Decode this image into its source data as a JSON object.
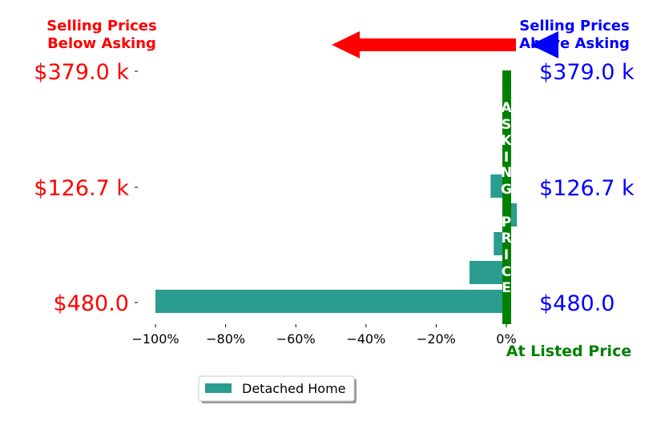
{
  "chart_data": {
    "type": "bar",
    "orientation": "horizontal",
    "headers": {
      "left": [
        "Selling Prices",
        "Below Asking"
      ],
      "right": [
        "Selling Prices",
        "Above Asking"
      ]
    },
    "ytick_labels": [
      "$480.0",
      "$126.7 k",
      "$379.0 k"
    ],
    "x_ticks": [
      "−100%",
      "−80%",
      "−60%",
      "−40%",
      "−20%",
      "0%"
    ],
    "xlim": [
      -100,
      0
    ],
    "series": [
      {
        "name": "Detached Home",
        "values": [
          -100,
          -10.5,
          -3.6,
          3.0,
          -4.5
        ]
      }
    ],
    "asking_price_label": "ASKING PRICE",
    "listed_price_label": "At Listed Price",
    "legend_position": "bottom-left",
    "colors": {
      "bar": "#2a9d8f",
      "asking_line": "#008000",
      "below": "#ff0000",
      "above": "#0000ff",
      "listed_label": "#008000"
    }
  }
}
